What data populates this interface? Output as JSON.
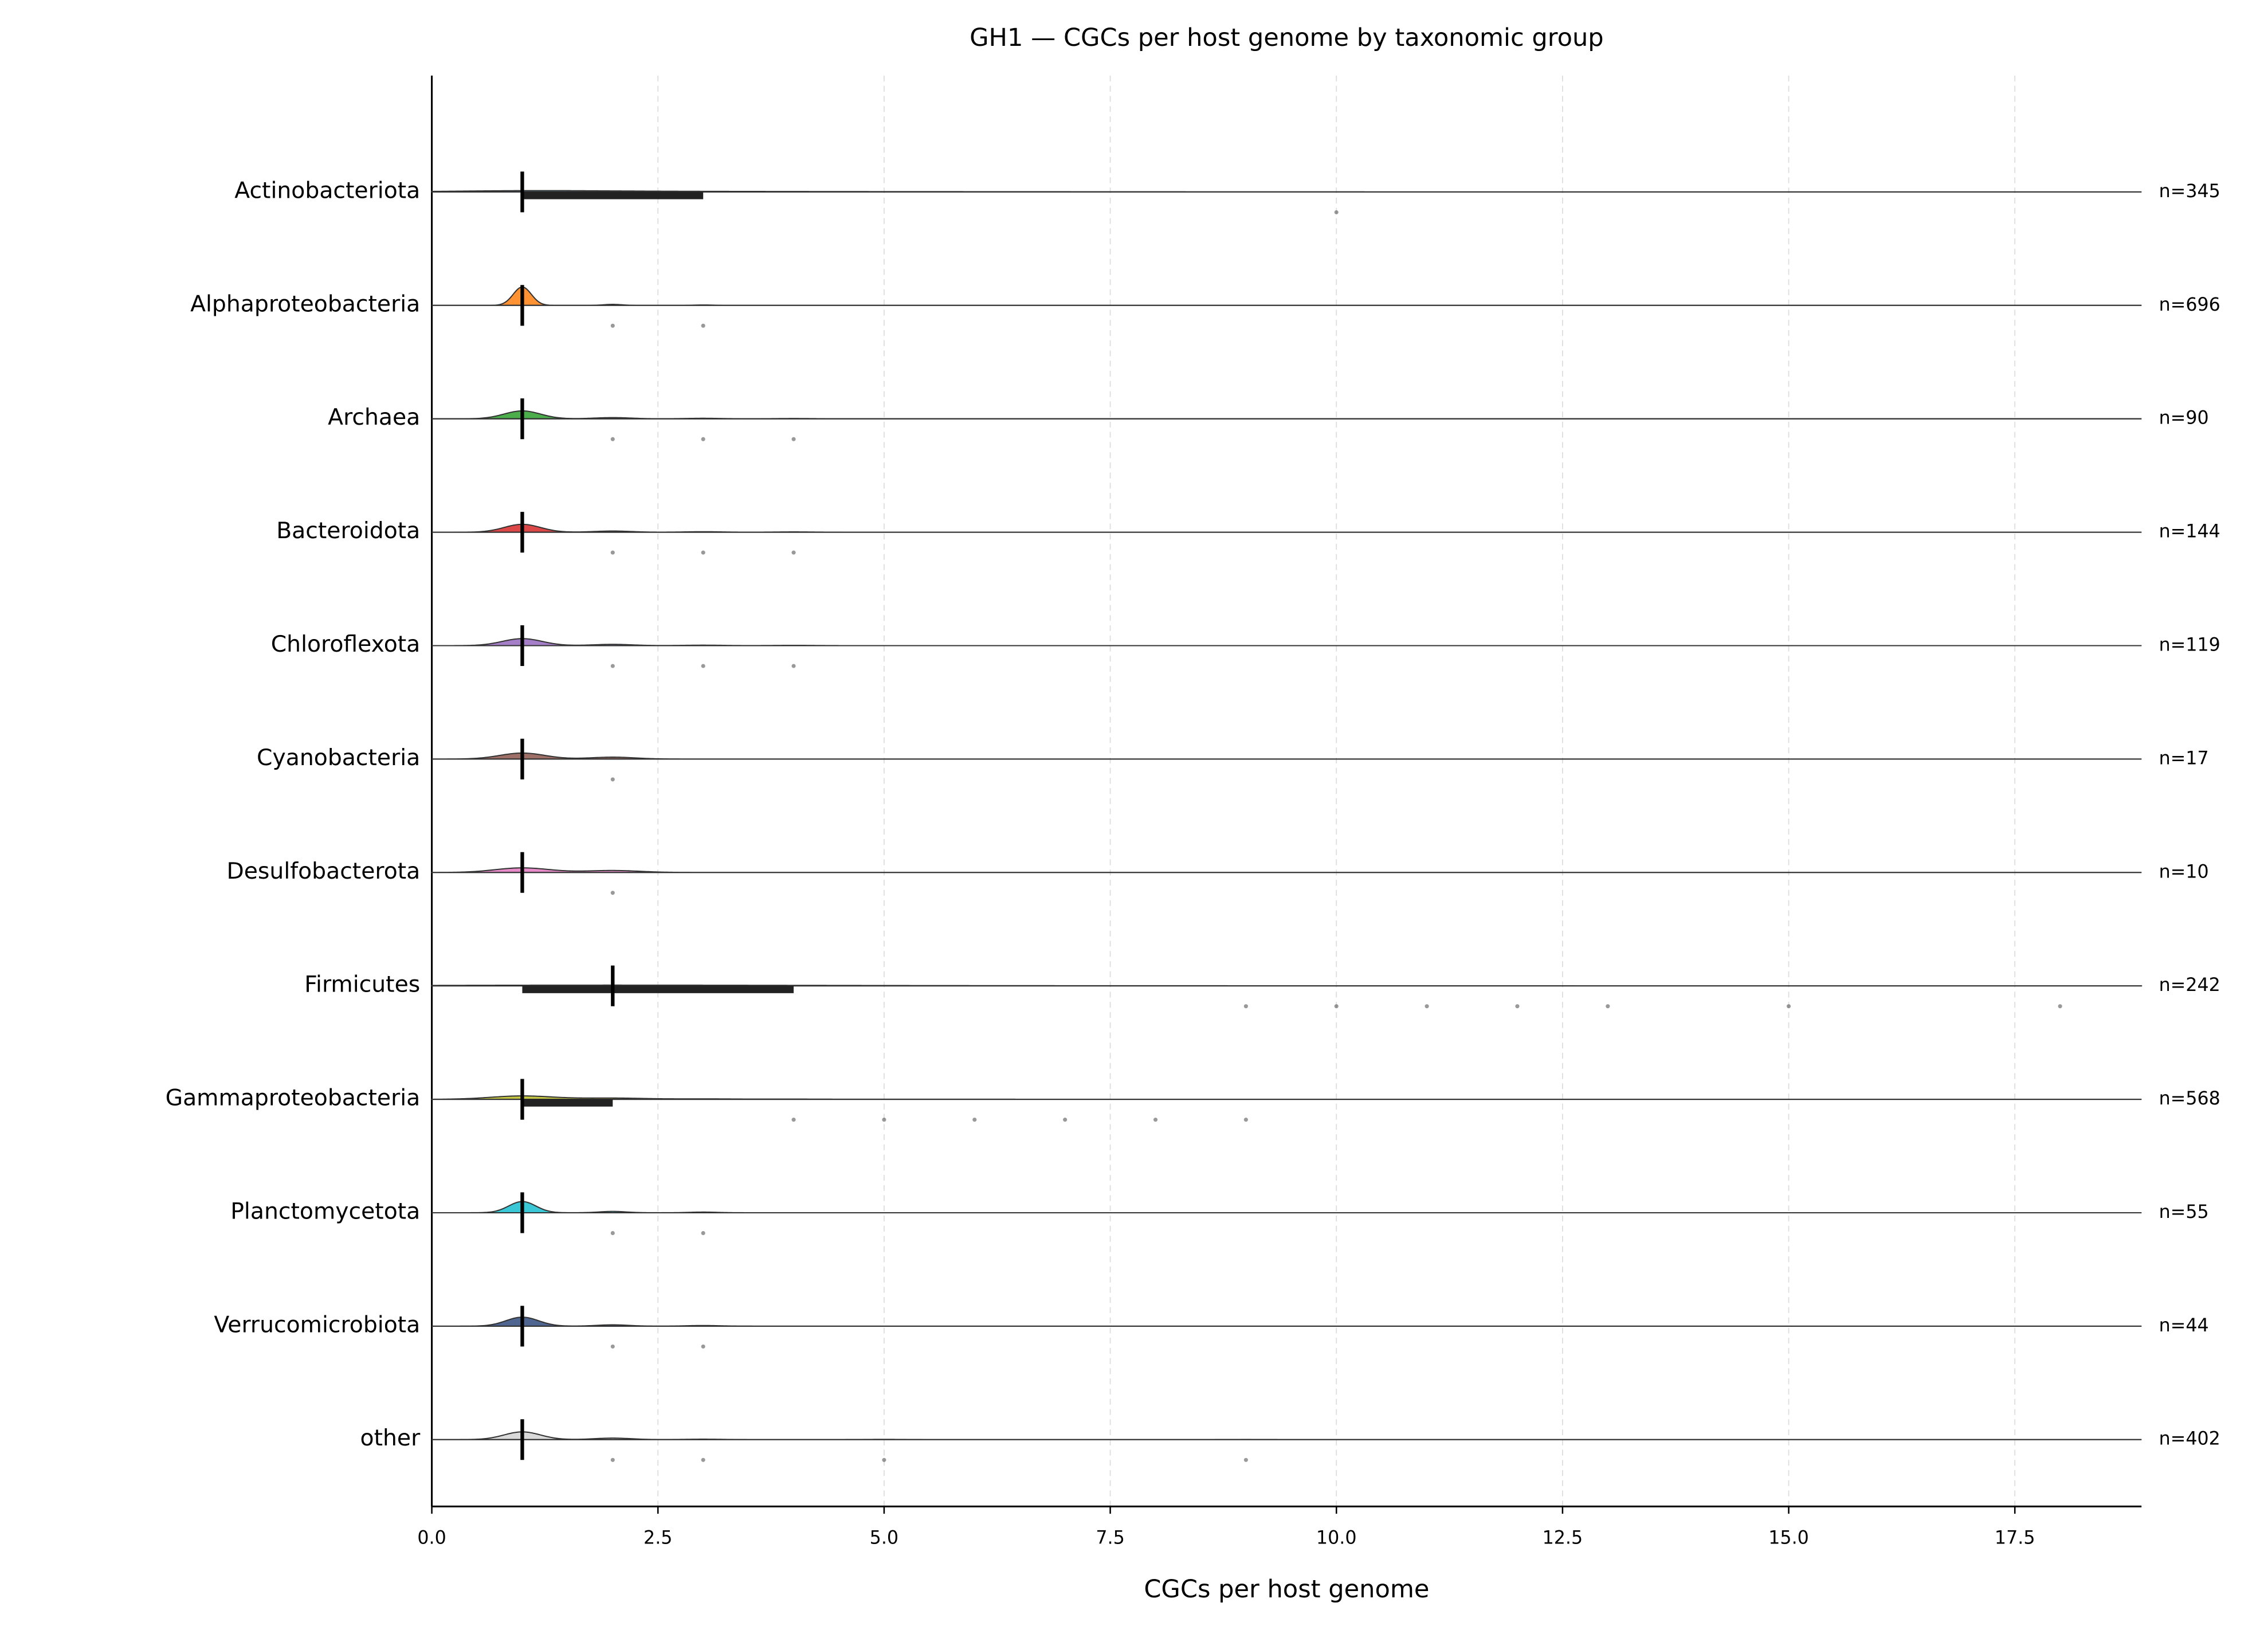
{
  "chart_data": {
    "type": "ridgeline",
    "title": "GH1 — CGCs per host genome by taxonomic group",
    "xlabel": "CGCs per host genome",
    "xlim": [
      0,
      18.9
    ],
    "xticks": [
      {
        "value": 0,
        "label": "0.0"
      },
      2.5,
      {
        "value": 5,
        "label": "5.0"
      },
      7.5,
      {
        "value": 10,
        "label": "10.0"
      },
      12.5,
      {
        "value": 15,
        "label": "15.0"
      },
      17.5
    ],
    "grid": true,
    "freq_x": [
      1,
      2,
      3,
      4,
      5,
      6,
      7,
      8,
      9,
      10,
      11,
      12,
      13,
      14,
      15,
      16,
      17,
      18
    ],
    "series": [
      {
        "name": "Actinobacteriota",
        "color": "#1f77b4",
        "n": 345,
        "n_label": "n=345",
        "median": 1,
        "q1": 1,
        "q3": 3,
        "outliers": [
          10
        ],
        "bandwidth": 0.8,
        "freq": [
          0.45,
          0.15,
          0.12,
          0.08,
          0.06,
          0.05,
          0.04,
          0.02,
          0.02,
          0.01
        ]
      },
      {
        "name": "Alphaproteobacteria",
        "color": "#ff7f0e",
        "n": 696,
        "n_label": "n=696",
        "median": 1,
        "q1": 1,
        "q3": 1,
        "outliers": [
          2,
          3
        ],
        "bandwidth": 0.1,
        "freq": [
          0.93,
          0.05,
          0.02
        ]
      },
      {
        "name": "Archaea",
        "color": "#2ca02c",
        "n": 90,
        "n_label": "n=90",
        "median": 1,
        "q1": 1,
        "q3": 1,
        "outliers": [
          2,
          3,
          4
        ],
        "bandwidth": 0.2,
        "freq": [
          0.8,
          0.12,
          0.05,
          0.03
        ]
      },
      {
        "name": "Bacteroidota",
        "color": "#d62728",
        "n": 144,
        "n_label": "n=144",
        "median": 1,
        "q1": 1,
        "q3": 1,
        "outliers": [
          2,
          3,
          4
        ],
        "bandwidth": 0.2,
        "freq": [
          0.8,
          0.12,
          0.05,
          0.03
        ]
      },
      {
        "name": "Chloroflexota",
        "color": "#9467bd",
        "n": 119,
        "n_label": "n=119",
        "median": 1,
        "q1": 1,
        "q3": 1,
        "outliers": [
          2,
          3,
          4
        ],
        "bandwidth": 0.22,
        "freq": [
          0.78,
          0.14,
          0.05,
          0.03
        ]
      },
      {
        "name": "Cyanobacteria",
        "color": "#8c564b",
        "n": 17,
        "n_label": "n=17",
        "median": 1,
        "q1": 1,
        "q3": 1,
        "outliers": [
          2
        ],
        "bandwidth": 0.25,
        "freq": [
          0.76,
          0.24
        ]
      },
      {
        "name": "Desulfobacterota",
        "color": "#e377c2",
        "n": 10,
        "n_label": "n=10",
        "median": 1,
        "q1": 1,
        "q3": 1,
        "outliers": [
          2
        ],
        "bandwidth": 0.3,
        "freq": [
          0.7,
          0.3
        ]
      },
      {
        "name": "Firmicutes",
        "color": "#7f7f7f",
        "n": 242,
        "n_label": "n=242",
        "median": 2,
        "q1": 1,
        "q3": 4,
        "outliers": [
          9,
          10,
          11,
          12,
          13,
          15,
          18
        ],
        "bandwidth": 1.6,
        "freq": [
          0.3,
          0.2,
          0.14,
          0.1,
          0.06,
          0.04,
          0.03,
          0.03,
          0.02,
          0.02,
          0.02,
          0.01,
          0.01,
          0,
          0.01,
          0,
          0,
          0.01
        ]
      },
      {
        "name": "Gammaproteobacteria",
        "color": "#bcbd22",
        "n": 568,
        "n_label": "n=568",
        "median": 1,
        "q1": 1,
        "q3": 2,
        "outliers": [
          4,
          5,
          6,
          7,
          8,
          9
        ],
        "bandwidth": 0.35,
        "freq": [
          0.6,
          0.22,
          0.08,
          0.04,
          0.02,
          0.02,
          0.01,
          0.005,
          0.005
        ]
      },
      {
        "name": "Planctomycetota",
        "color": "#17becf",
        "n": 55,
        "n_label": "n=55",
        "median": 1,
        "q1": 1,
        "q3": 1,
        "outliers": [
          2,
          3
        ],
        "bandwidth": 0.15,
        "freq": [
          0.85,
          0.1,
          0.05
        ]
      },
      {
        "name": "Verrucomicrobiota",
        "color": "#2f4b7c",
        "n": 44,
        "n_label": "n=44",
        "median": 1,
        "q1": 1,
        "q3": 1,
        "outliers": [
          2,
          3
        ],
        "bandwidth": 0.18,
        "freq": [
          0.82,
          0.12,
          0.06
        ]
      },
      {
        "name": "other",
        "color": "#d3d3d3",
        "n": 402,
        "n_label": "n=402",
        "median": 1,
        "q1": 1,
        "q3": 1,
        "outliers": [
          2,
          3,
          5,
          9
        ],
        "bandwidth": 0.2,
        "freq": [
          0.78,
          0.15,
          0.04,
          0,
          0.02,
          0,
          0,
          0,
          0.01
        ]
      }
    ]
  }
}
